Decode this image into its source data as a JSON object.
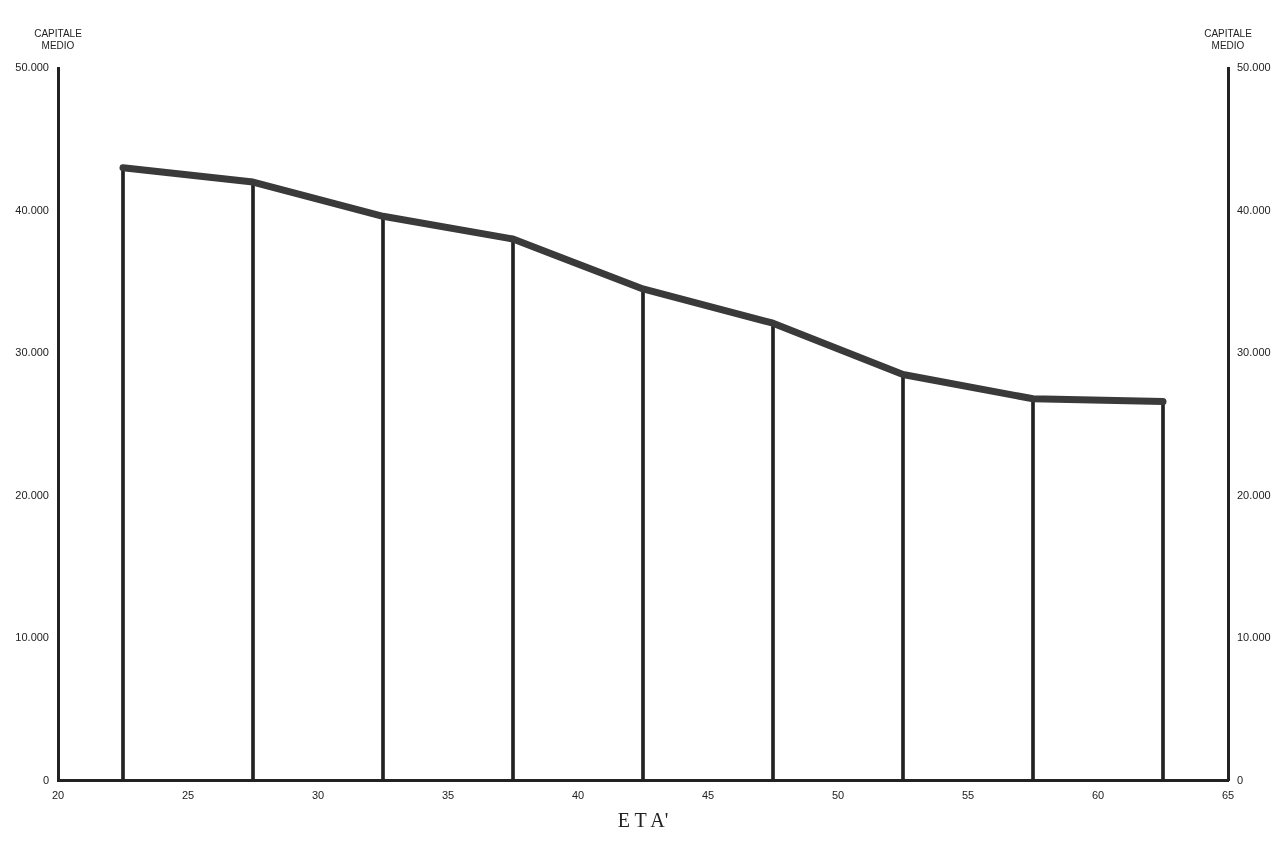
{
  "chart_data": {
    "type": "line",
    "xlabel": "E T A'",
    "ylabel": "CAPITALE MEDIO",
    "y2label": "CAPITALE MEDIO",
    "x": [
      22.5,
      27.5,
      32.5,
      37.5,
      42.5,
      47.5,
      52.5,
      57.5,
      62.5
    ],
    "series": [
      {
        "type": "bar",
        "color": "#222222",
        "values": [
          43000,
          42000,
          39600,
          38000,
          34500,
          32100,
          28500,
          26800,
          26600
        ]
      },
      {
        "color": "#3a3a3a",
        "values": [
          43000,
          42000,
          39600,
          38000,
          34500,
          32100,
          28500,
          26800,
          26600
        ]
      }
    ],
    "xlim": [
      20,
      65
    ],
    "xticks": [
      20,
      25,
      30,
      35,
      40,
      45,
      50,
      55,
      60,
      65
    ],
    "ylim": [
      0,
      50000
    ],
    "yticks": [
      0,
      {
        "value": 10000,
        "label": "10.000"
      },
      {
        "value": 20000,
        "label": "20.000"
      },
      {
        "value": 30000,
        "label": "30.000"
      },
      {
        "value": 40000,
        "label": "40.000"
      },
      {
        "value": 50000,
        "label": "50.000"
      }
    ],
    "y2lim": [
      0,
      50000
    ],
    "y2ticks": [
      0,
      {
        "value": 10000,
        "label": "10.000"
      },
      {
        "value": 20000,
        "label": "20.000"
      },
      {
        "value": 30000,
        "label": "30.000"
      },
      {
        "value": 40000,
        "label": "40.000"
      },
      {
        "value": 50000,
        "label": "50.000"
      }
    ],
    "grid": false,
    "legend": false,
    "marker": "none",
    "line_style": "solid"
  }
}
